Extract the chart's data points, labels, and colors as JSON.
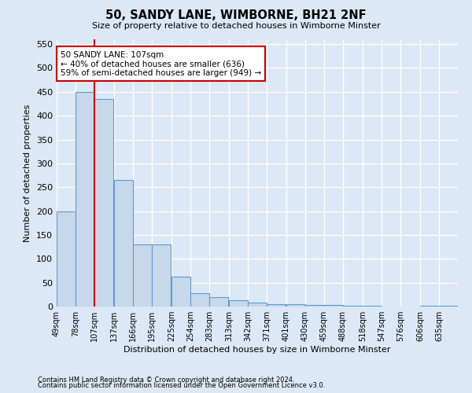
{
  "title": "50, SANDY LANE, WIMBORNE, BH21 2NF",
  "subtitle": "Size of property relative to detached houses in Wimborne Minster",
  "xlabel": "Distribution of detached houses by size in Wimborne Minster",
  "ylabel": "Number of detached properties",
  "footnote1": "Contains HM Land Registry data © Crown copyright and database right 2024.",
  "footnote2": "Contains public sector information licensed under the Open Government Licence v3.0.",
  "annotation_title": "50 SANDY LANE: 107sqm",
  "annotation_line1": "← 40% of detached houses are smaller (636)",
  "annotation_line2": "59% of semi-detached houses are larger (949) →",
  "property_size": 107,
  "bin_starts": [
    49,
    78,
    107,
    137,
    166,
    195,
    225,
    254,
    283,
    313,
    342,
    371,
    401,
    430,
    459,
    488,
    518,
    547,
    576,
    606,
    635
  ],
  "bin_labels": [
    "49sqm",
    "78sqm",
    "107sqm",
    "137sqm",
    "166sqm",
    "195sqm",
    "225sqm",
    "254sqm",
    "283sqm",
    "313sqm",
    "342sqm",
    "371sqm",
    "401sqm",
    "430sqm",
    "459sqm",
    "488sqm",
    "518sqm",
    "547sqm",
    "576sqm",
    "606sqm",
    "635sqm"
  ],
  "bar_heights": [
    200,
    450,
    435,
    265,
    130,
    130,
    62,
    28,
    20,
    14,
    8,
    5,
    5,
    3,
    3,
    2,
    2,
    0,
    0,
    2,
    2
  ],
  "bar_color": "#c8d8eb",
  "bar_edge_color": "#5b9bd5",
  "marker_color": "#cc0000",
  "annotation_box_color": "#ffffff",
  "annotation_box_edge": "#cc0000",
  "background_color": "#dce8f5",
  "grid_color": "#ffffff",
  "ylim": [
    0,
    560
  ],
  "yticks": [
    0,
    50,
    100,
    150,
    200,
    250,
    300,
    350,
    400,
    450,
    500,
    550
  ]
}
